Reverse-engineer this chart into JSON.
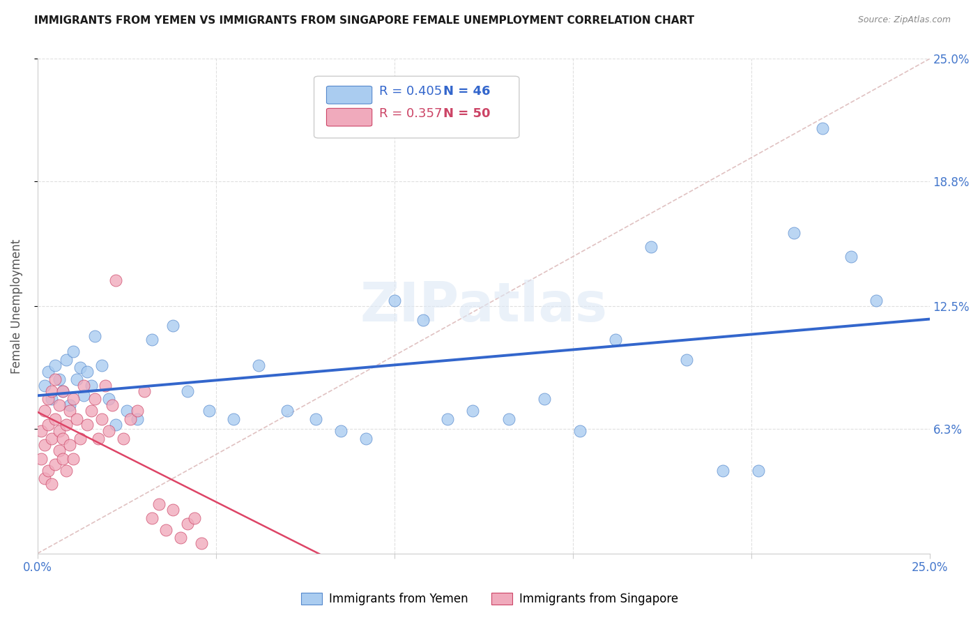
{
  "title": "IMMIGRANTS FROM YEMEN VS IMMIGRANTS FROM SINGAPORE FEMALE UNEMPLOYMENT CORRELATION CHART",
  "source": "Source: ZipAtlas.com",
  "ylabel": "Female Unemployment",
  "xlim": [
    0.0,
    0.25
  ],
  "ylim": [
    0.0,
    0.25
  ],
  "ytick_values": [
    0.063,
    0.125,
    0.188,
    0.25
  ],
  "ytick_labels": [
    "6.3%",
    "12.5%",
    "18.8%",
    "25.0%"
  ],
  "xtick_values": [
    0.0,
    0.05,
    0.1,
    0.15,
    0.2,
    0.25
  ],
  "grid_color": "#d8d8d8",
  "background_color": "#ffffff",
  "yemen_color": "#aaccf0",
  "singapore_color": "#f0aabc",
  "yemen_edge_color": "#5588cc",
  "singapore_edge_color": "#cc4466",
  "yemen_line_color": "#3366cc",
  "singapore_line_color": "#dd4466",
  "diagonal_color": "#ddbbbb",
  "axis_label_color": "#4477cc",
  "legend_R_yemen": "0.405",
  "legend_N_yemen": "46",
  "legend_R_singapore": "0.357",
  "legend_N_singapore": "50",
  "yemen_x": [
    0.002,
    0.003,
    0.004,
    0.005,
    0.006,
    0.007,
    0.008,
    0.009,
    0.01,
    0.011,
    0.012,
    0.013,
    0.014,
    0.015,
    0.016,
    0.018,
    0.02,
    0.022,
    0.025,
    0.028,
    0.032,
    0.038,
    0.042,
    0.048,
    0.055,
    0.062,
    0.07,
    0.078,
    0.085,
    0.092,
    0.1,
    0.108,
    0.115,
    0.122,
    0.132,
    0.142,
    0.152,
    0.162,
    0.172,
    0.182,
    0.192,
    0.202,
    0.212,
    0.22,
    0.228,
    0.235
  ],
  "yemen_y": [
    0.085,
    0.092,
    0.078,
    0.095,
    0.088,
    0.082,
    0.098,
    0.075,
    0.102,
    0.088,
    0.094,
    0.08,
    0.092,
    0.085,
    0.11,
    0.095,
    0.078,
    0.065,
    0.072,
    0.068,
    0.108,
    0.115,
    0.082,
    0.072,
    0.068,
    0.095,
    0.072,
    0.068,
    0.062,
    0.058,
    0.128,
    0.118,
    0.068,
    0.072,
    0.068,
    0.078,
    0.062,
    0.108,
    0.155,
    0.098,
    0.042,
    0.042,
    0.162,
    0.215,
    0.15,
    0.128
  ],
  "singapore_x": [
    0.001,
    0.001,
    0.002,
    0.002,
    0.002,
    0.003,
    0.003,
    0.003,
    0.004,
    0.004,
    0.004,
    0.005,
    0.005,
    0.005,
    0.006,
    0.006,
    0.006,
    0.007,
    0.007,
    0.007,
    0.008,
    0.008,
    0.009,
    0.009,
    0.01,
    0.01,
    0.011,
    0.012,
    0.013,
    0.014,
    0.015,
    0.016,
    0.017,
    0.018,
    0.019,
    0.02,
    0.021,
    0.022,
    0.024,
    0.026,
    0.028,
    0.03,
    0.032,
    0.034,
    0.036,
    0.038,
    0.04,
    0.042,
    0.044,
    0.046
  ],
  "singapore_y": [
    0.048,
    0.062,
    0.055,
    0.038,
    0.072,
    0.065,
    0.042,
    0.078,
    0.058,
    0.082,
    0.035,
    0.068,
    0.045,
    0.088,
    0.062,
    0.052,
    0.075,
    0.058,
    0.048,
    0.082,
    0.065,
    0.042,
    0.072,
    0.055,
    0.078,
    0.048,
    0.068,
    0.058,
    0.085,
    0.065,
    0.072,
    0.078,
    0.058,
    0.068,
    0.085,
    0.062,
    0.075,
    0.138,
    0.058,
    0.068,
    0.072,
    0.082,
    0.018,
    0.025,
    0.012,
    0.022,
    0.008,
    0.015,
    0.018,
    0.005
  ]
}
